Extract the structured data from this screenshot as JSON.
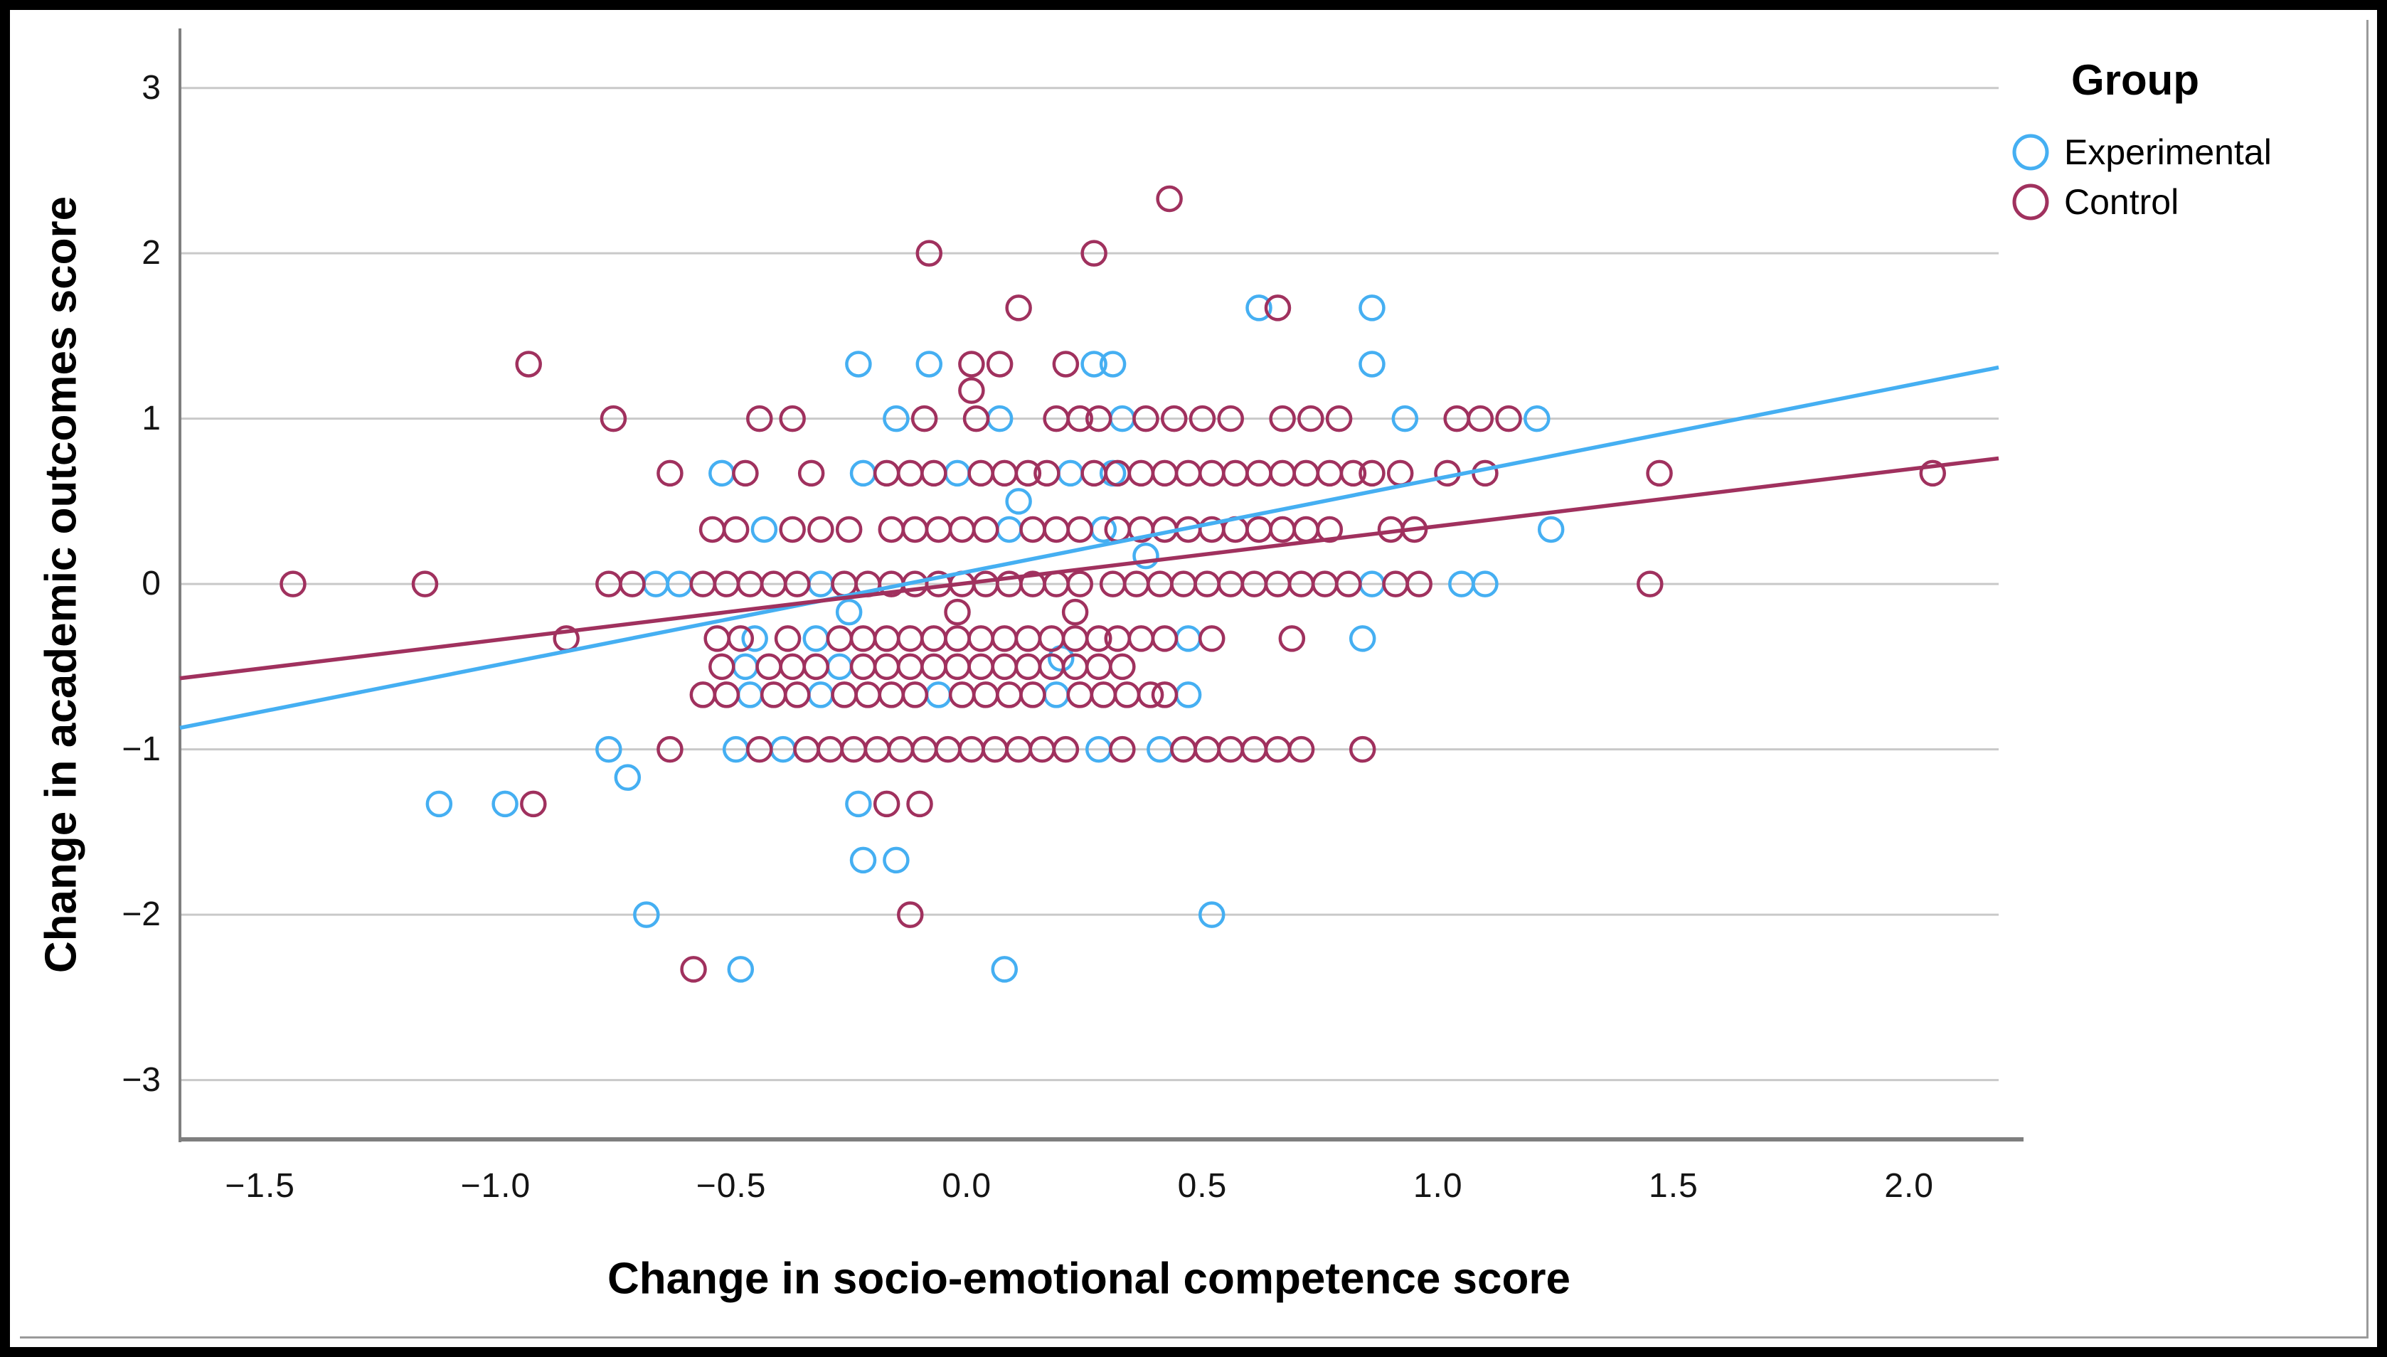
{
  "colors": {
    "experimental": "#45AFF2",
    "control": "#A0315E",
    "gridline": "#C9C9C9",
    "axis": "#7F7F7F",
    "text": "#000000",
    "background": "#FFFFFF",
    "frame": "#000000"
  },
  "chart_data": {
    "type": "scatter",
    "title": "",
    "xlabel": "Change in socio-emotional competence score",
    "ylabel": "Change in academic outcomes score",
    "xlim": [
      -1.67,
      2.19
    ],
    "ylim": [
      -3.35,
      3.36
    ],
    "grid": "horizontal",
    "x_ticks": [
      {
        "value": -1.5,
        "label": "−1.5"
      },
      {
        "value": -1.0,
        "label": "−1.0"
      },
      {
        "value": -0.5,
        "label": "−0.5"
      },
      {
        "value": 0.0,
        "label": "0.0"
      },
      {
        "value": 0.5,
        "label": "0.5"
      },
      {
        "value": 1.0,
        "label": "1.0"
      },
      {
        "value": 1.5,
        "label": "1.5"
      },
      {
        "value": 2.0,
        "label": "2.0"
      }
    ],
    "y_ticks": [
      {
        "value": 3,
        "label": "3"
      },
      {
        "value": 2,
        "label": "2"
      },
      {
        "value": 1,
        "label": "1"
      },
      {
        "value": 0,
        "label": "0"
      },
      {
        "value": -1,
        "label": "−1"
      },
      {
        "value": -2,
        "label": "−2"
      },
      {
        "value": -3,
        "label": "−3"
      }
    ],
    "legend": {
      "title": "Group",
      "position": "top-right",
      "entries": [
        {
          "label": "Experimental",
          "color": "#45AFF2"
        },
        {
          "label": "Control",
          "color": "#A0315E"
        }
      ]
    },
    "series": [
      {
        "name": "Experimental",
        "color": "#45AFF2",
        "marker": "open-circle",
        "points": [
          [
            0.62,
            1.67
          ],
          [
            0.86,
            1.67
          ],
          [
            -0.23,
            1.33
          ],
          [
            -0.08,
            1.33
          ],
          [
            0.27,
            1.33
          ],
          [
            0.31,
            1.33
          ],
          [
            0.86,
            1.33
          ],
          [
            -0.15,
            1.0
          ],
          [
            0.07,
            1.0
          ],
          [
            0.33,
            1.0
          ],
          [
            0.93,
            1.0
          ],
          [
            1.21,
            1.0
          ],
          [
            -0.52,
            0.67
          ],
          [
            -0.22,
            0.67
          ],
          [
            -0.02,
            0.67
          ],
          [
            0.22,
            0.67
          ],
          [
            0.31,
            0.67
          ],
          [
            0.11,
            0.5
          ],
          [
            -0.43,
            0.33
          ],
          [
            0.09,
            0.33
          ],
          [
            0.29,
            0.33
          ],
          [
            1.24,
            0.33
          ],
          [
            0.38,
            0.17
          ],
          [
            -0.66,
            0.0
          ],
          [
            -0.61,
            0.0
          ],
          [
            -0.31,
            0.0
          ],
          [
            0.86,
            0.0
          ],
          [
            1.05,
            0.0
          ],
          [
            1.1,
            0.0
          ],
          [
            -0.25,
            -0.17
          ],
          [
            -0.45,
            -0.33
          ],
          [
            -0.32,
            -0.33
          ],
          [
            0.47,
            -0.33
          ],
          [
            0.84,
            -0.33
          ],
          [
            0.2,
            -0.45
          ],
          [
            -0.47,
            -0.5
          ],
          [
            -0.27,
            -0.5
          ],
          [
            -0.46,
            -0.67
          ],
          [
            -0.31,
            -0.67
          ],
          [
            -0.06,
            -0.67
          ],
          [
            0.19,
            -0.67
          ],
          [
            0.47,
            -0.67
          ],
          [
            -0.76,
            -1.0
          ],
          [
            -0.49,
            -1.0
          ],
          [
            -0.39,
            -1.0
          ],
          [
            0.28,
            -1.0
          ],
          [
            0.41,
            -1.0
          ],
          [
            -0.72,
            -1.17
          ],
          [
            -1.12,
            -1.33
          ],
          [
            -0.98,
            -1.33
          ],
          [
            -0.23,
            -1.33
          ],
          [
            -0.22,
            -1.67
          ],
          [
            -0.15,
            -1.67
          ],
          [
            -0.68,
            -2.0
          ],
          [
            0.52,
            -2.0
          ],
          [
            -0.48,
            -2.33
          ],
          [
            0.08,
            -2.33
          ]
        ]
      },
      {
        "name": "Control",
        "color": "#A0315E",
        "marker": "open-circle",
        "points": [
          [
            0.43,
            2.33
          ],
          [
            -0.08,
            2.0
          ],
          [
            0.27,
            2.0
          ],
          [
            0.11,
            1.67
          ],
          [
            0.66,
            1.67
          ],
          [
            -0.93,
            1.33
          ],
          [
            0.01,
            1.33
          ],
          [
            0.07,
            1.33
          ],
          [
            0.21,
            1.33
          ],
          [
            0.01,
            1.17
          ],
          [
            -0.75,
            1.0
          ],
          [
            -0.44,
            1.0
          ],
          [
            -0.37,
            1.0
          ],
          [
            -0.09,
            1.0
          ],
          [
            0.02,
            1.0
          ],
          [
            0.19,
            1.0
          ],
          [
            0.24,
            1.0
          ],
          [
            0.28,
            1.0
          ],
          [
            0.38,
            1.0
          ],
          [
            0.44,
            1.0
          ],
          [
            0.5,
            1.0
          ],
          [
            0.56,
            1.0
          ],
          [
            0.67,
            1.0
          ],
          [
            0.73,
            1.0
          ],
          [
            0.79,
            1.0
          ],
          [
            1.04,
            1.0
          ],
          [
            1.09,
            1.0
          ],
          [
            1.15,
            1.0
          ],
          [
            -0.63,
            0.67
          ],
          [
            -0.47,
            0.67
          ],
          [
            -0.33,
            0.67
          ],
          [
            -0.17,
            0.67
          ],
          [
            -0.12,
            0.67
          ],
          [
            -0.07,
            0.67
          ],
          [
            0.03,
            0.67
          ],
          [
            0.08,
            0.67
          ],
          [
            0.13,
            0.67
          ],
          [
            0.17,
            0.67
          ],
          [
            0.27,
            0.67
          ],
          [
            0.32,
            0.67
          ],
          [
            0.37,
            0.67
          ],
          [
            0.42,
            0.67
          ],
          [
            0.47,
            0.67
          ],
          [
            0.52,
            0.67
          ],
          [
            0.57,
            0.67
          ],
          [
            0.62,
            0.67
          ],
          [
            0.67,
            0.67
          ],
          [
            0.72,
            0.67
          ],
          [
            0.77,
            0.67
          ],
          [
            0.82,
            0.67
          ],
          [
            0.86,
            0.67
          ],
          [
            0.92,
            0.67
          ],
          [
            1.02,
            0.67
          ],
          [
            1.1,
            0.67
          ],
          [
            1.47,
            0.67
          ],
          [
            2.05,
            0.67
          ],
          [
            -0.54,
            0.33
          ],
          [
            -0.49,
            0.33
          ],
          [
            -0.37,
            0.33
          ],
          [
            -0.31,
            0.33
          ],
          [
            -0.25,
            0.33
          ],
          [
            -0.16,
            0.33
          ],
          [
            -0.11,
            0.33
          ],
          [
            -0.06,
            0.33
          ],
          [
            -0.01,
            0.33
          ],
          [
            0.04,
            0.33
          ],
          [
            0.14,
            0.33
          ],
          [
            0.19,
            0.33
          ],
          [
            0.24,
            0.33
          ],
          [
            0.32,
            0.33
          ],
          [
            0.37,
            0.33
          ],
          [
            0.42,
            0.33
          ],
          [
            0.47,
            0.33
          ],
          [
            0.52,
            0.33
          ],
          [
            0.57,
            0.33
          ],
          [
            0.62,
            0.33
          ],
          [
            0.67,
            0.33
          ],
          [
            0.72,
            0.33
          ],
          [
            0.77,
            0.33
          ],
          [
            0.9,
            0.33
          ],
          [
            0.95,
            0.33
          ],
          [
            -1.43,
            0.0
          ],
          [
            -1.15,
            0.0
          ],
          [
            -0.76,
            0.0
          ],
          [
            -0.71,
            0.0
          ],
          [
            -0.56,
            0.0
          ],
          [
            -0.51,
            0.0
          ],
          [
            -0.46,
            0.0
          ],
          [
            -0.41,
            0.0
          ],
          [
            -0.36,
            0.0
          ],
          [
            -0.26,
            0.0
          ],
          [
            -0.21,
            0.0
          ],
          [
            -0.16,
            0.0
          ],
          [
            -0.11,
            0.0
          ],
          [
            -0.06,
            0.0
          ],
          [
            -0.01,
            0.0
          ],
          [
            0.04,
            0.0
          ],
          [
            0.09,
            0.0
          ],
          [
            0.14,
            0.0
          ],
          [
            0.19,
            0.0
          ],
          [
            0.24,
            0.0
          ],
          [
            0.31,
            0.0
          ],
          [
            0.36,
            0.0
          ],
          [
            0.41,
            0.0
          ],
          [
            0.46,
            0.0
          ],
          [
            0.51,
            0.0
          ],
          [
            0.56,
            0.0
          ],
          [
            0.61,
            0.0
          ],
          [
            0.66,
            0.0
          ],
          [
            0.71,
            0.0
          ],
          [
            0.76,
            0.0
          ],
          [
            0.81,
            0.0
          ],
          [
            0.91,
            0.0
          ],
          [
            0.96,
            0.0
          ],
          [
            1.45,
            0.0
          ],
          [
            -0.02,
            -0.17
          ],
          [
            0.23,
            -0.17
          ],
          [
            -0.85,
            -0.33
          ],
          [
            -0.53,
            -0.33
          ],
          [
            -0.48,
            -0.33
          ],
          [
            -0.38,
            -0.33
          ],
          [
            -0.27,
            -0.33
          ],
          [
            -0.22,
            -0.33
          ],
          [
            -0.17,
            -0.33
          ],
          [
            -0.12,
            -0.33
          ],
          [
            -0.07,
            -0.33
          ],
          [
            -0.02,
            -0.33
          ],
          [
            0.03,
            -0.33
          ],
          [
            0.08,
            -0.33
          ],
          [
            0.13,
            -0.33
          ],
          [
            0.18,
            -0.33
          ],
          [
            0.23,
            -0.33
          ],
          [
            0.28,
            -0.33
          ],
          [
            0.32,
            -0.33
          ],
          [
            0.37,
            -0.33
          ],
          [
            0.42,
            -0.33
          ],
          [
            0.52,
            -0.33
          ],
          [
            0.69,
            -0.33
          ],
          [
            -0.52,
            -0.5
          ],
          [
            -0.42,
            -0.5
          ],
          [
            -0.37,
            -0.5
          ],
          [
            -0.32,
            -0.5
          ],
          [
            -0.22,
            -0.5
          ],
          [
            -0.17,
            -0.5
          ],
          [
            -0.12,
            -0.5
          ],
          [
            -0.07,
            -0.5
          ],
          [
            -0.02,
            -0.5
          ],
          [
            0.03,
            -0.5
          ],
          [
            0.08,
            -0.5
          ],
          [
            0.13,
            -0.5
          ],
          [
            0.18,
            -0.5
          ],
          [
            0.23,
            -0.5
          ],
          [
            0.28,
            -0.5
          ],
          [
            0.33,
            -0.5
          ],
          [
            -0.56,
            -0.67
          ],
          [
            -0.51,
            -0.67
          ],
          [
            -0.41,
            -0.67
          ],
          [
            -0.36,
            -0.67
          ],
          [
            -0.26,
            -0.67
          ],
          [
            -0.21,
            -0.67
          ],
          [
            -0.16,
            -0.67
          ],
          [
            -0.11,
            -0.67
          ],
          [
            -0.01,
            -0.67
          ],
          [
            0.04,
            -0.67
          ],
          [
            0.09,
            -0.67
          ],
          [
            0.14,
            -0.67
          ],
          [
            0.24,
            -0.67
          ],
          [
            0.29,
            -0.67
          ],
          [
            0.34,
            -0.67
          ],
          [
            0.39,
            -0.67
          ],
          [
            0.42,
            -0.67
          ],
          [
            -0.63,
            -1.0
          ],
          [
            -0.44,
            -1.0
          ],
          [
            -0.34,
            -1.0
          ],
          [
            -0.29,
            -1.0
          ],
          [
            -0.24,
            -1.0
          ],
          [
            -0.19,
            -1.0
          ],
          [
            -0.14,
            -1.0
          ],
          [
            -0.09,
            -1.0
          ],
          [
            -0.04,
            -1.0
          ],
          [
            0.01,
            -1.0
          ],
          [
            0.06,
            -1.0
          ],
          [
            0.11,
            -1.0
          ],
          [
            0.16,
            -1.0
          ],
          [
            0.21,
            -1.0
          ],
          [
            0.33,
            -1.0
          ],
          [
            0.46,
            -1.0
          ],
          [
            0.51,
            -1.0
          ],
          [
            0.56,
            -1.0
          ],
          [
            0.61,
            -1.0
          ],
          [
            0.66,
            -1.0
          ],
          [
            0.71,
            -1.0
          ],
          [
            0.84,
            -1.0
          ],
          [
            -0.92,
            -1.33
          ],
          [
            -0.17,
            -1.33
          ],
          [
            -0.1,
            -1.33
          ],
          [
            -0.12,
            -2.0
          ],
          [
            -0.58,
            -2.33
          ]
        ]
      }
    ],
    "fit_lines": [
      {
        "name": "Experimental",
        "color": "#45AFF2",
        "from": [
          -1.67,
          -0.87
        ],
        "to": [
          2.19,
          1.31
        ]
      },
      {
        "name": "Control",
        "color": "#A0315E",
        "from": [
          -1.67,
          -0.57
        ],
        "to": [
          2.19,
          0.76
        ]
      }
    ]
  }
}
